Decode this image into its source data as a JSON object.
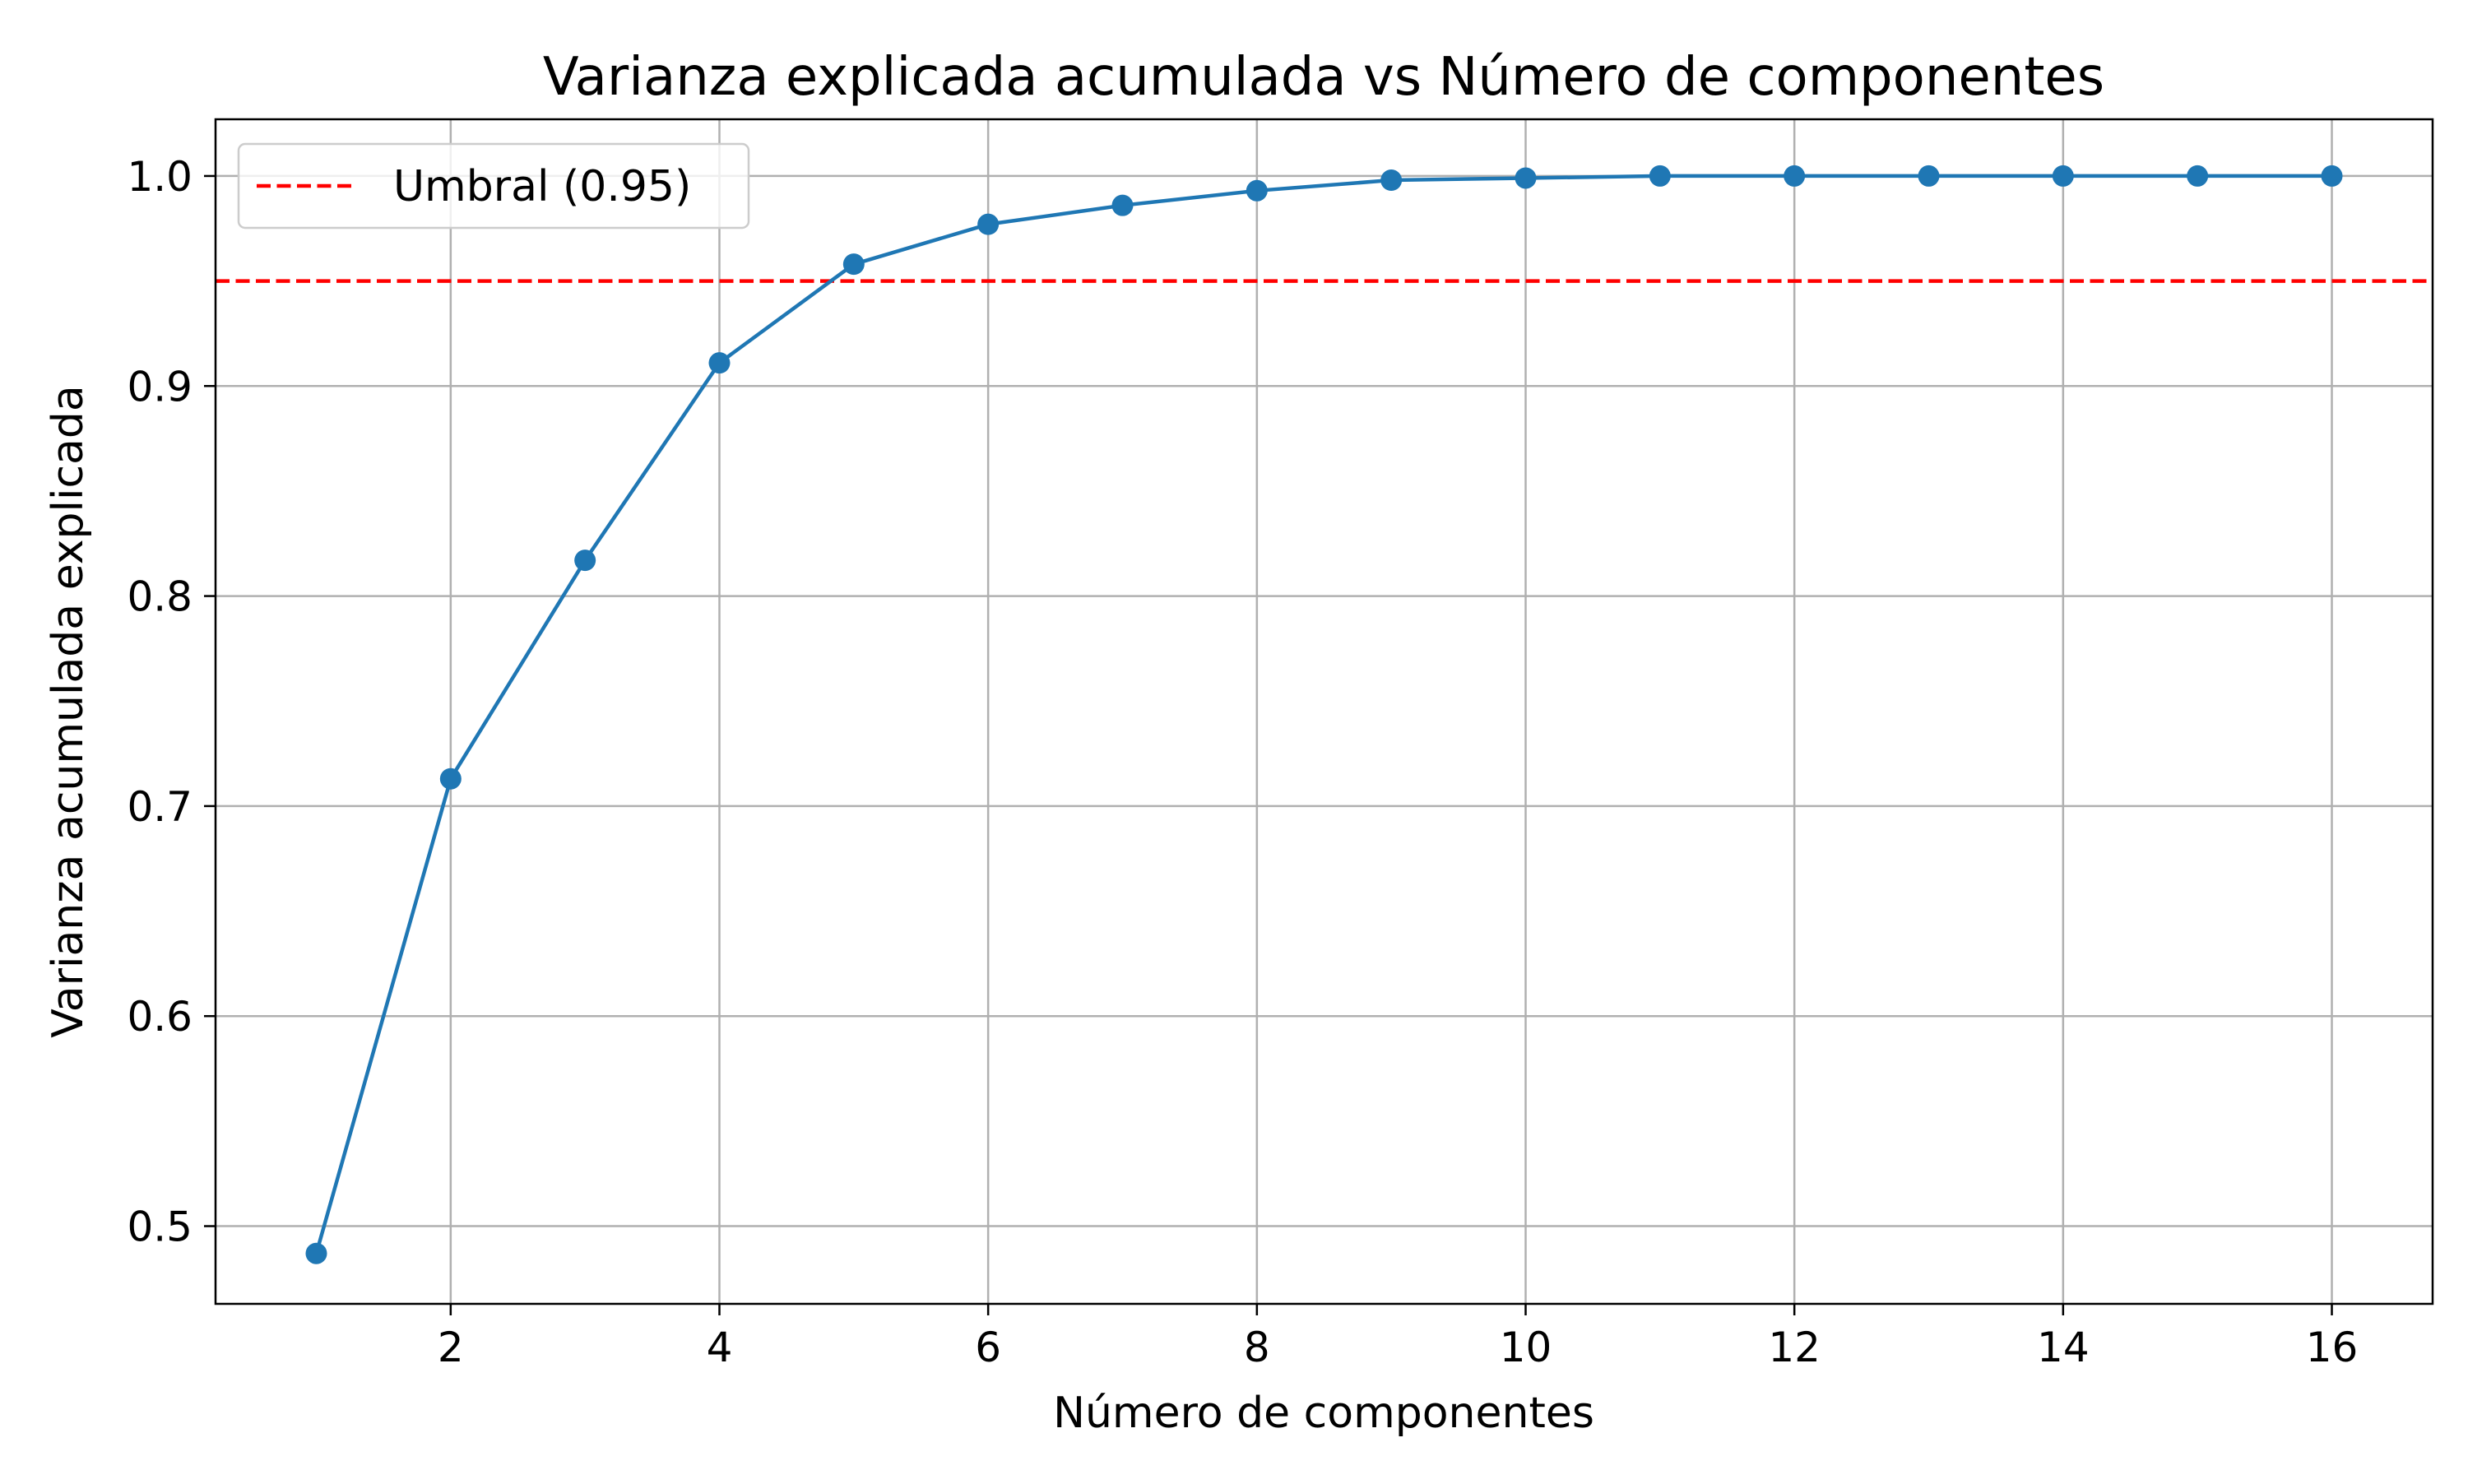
{
  "chart_data": {
    "type": "line",
    "title": "Varianza explicada acumulada vs Número de componentes",
    "xlabel": "Número de componentes",
    "ylabel": "Varianza acumulada explicada",
    "xlim": [
      0.25,
      16.75
    ],
    "ylim": [
      0.463,
      1.027
    ],
    "x_ticks": [
      2,
      4,
      6,
      8,
      10,
      12,
      14,
      16
    ],
    "y_ticks": [
      0.5,
      0.6,
      0.7,
      0.8,
      0.9,
      1.0
    ],
    "x_tick_labels": [
      "2",
      "4",
      "6",
      "8",
      "10",
      "12",
      "14",
      "16"
    ],
    "y_tick_labels": [
      "0.5",
      "0.6",
      "0.7",
      "0.8",
      "0.9",
      "1.0"
    ],
    "grid": true,
    "legend_position": "top-left",
    "series": [
      {
        "name": "",
        "color": "#1f77b4",
        "marker": "circle",
        "x": [
          1,
          2,
          3,
          4,
          5,
          6,
          7,
          8,
          9,
          10,
          11,
          12,
          13,
          14,
          15,
          16
        ],
        "y": [
          0.487,
          0.713,
          0.817,
          0.911,
          0.958,
          0.977,
          0.986,
          0.993,
          0.998,
          0.999,
          1.0,
          1.0,
          1.0,
          1.0,
          1.0,
          1.0
        ]
      }
    ],
    "reference_lines": [
      {
        "name": "Umbral (0.95)",
        "y": 0.95,
        "color": "#ff0000",
        "style": "dashed"
      }
    ]
  }
}
